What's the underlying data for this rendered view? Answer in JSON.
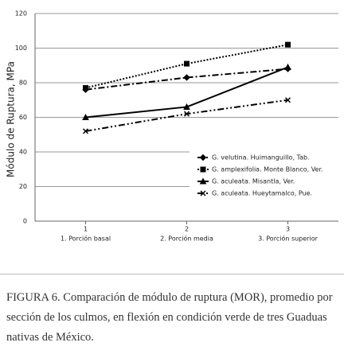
{
  "chart_data": {
    "type": "line",
    "y_label": "Módulo de Ruptura, MPa",
    "categories": [
      "1",
      "2",
      "3"
    ],
    "category_descriptions": [
      "1. Porción basal",
      "2. Porción media",
      "3. Porción superior"
    ],
    "ylim": [
      0,
      120
    ],
    "yticks": [
      0,
      20,
      40,
      60,
      80,
      100,
      120
    ],
    "grid": true,
    "series": [
      {
        "name": "G. velutina. Huimanguillo, Tab.",
        "color": "#000000",
        "dash": "dashdot",
        "marker": "diamond",
        "values": [
          76,
          83,
          88
        ]
      },
      {
        "name": "G. amplexifolia. Monte Blanco, Ver.",
        "color": "#000000",
        "dash": "dot",
        "marker": "square",
        "values": [
          77,
          91,
          102
        ]
      },
      {
        "name": "G. aculeata. Misantla, Ver.",
        "color": "#000000",
        "dash": "solid",
        "marker": "triangle",
        "values": [
          60,
          66,
          89
        ]
      },
      {
        "name": "G. aculeata. Hueytamalco, Pue.",
        "color": "#000000",
        "dash": "dashdotdot",
        "marker": "x",
        "values": [
          52,
          62,
          70
        ]
      }
    ]
  },
  "caption": "FIGURA 6. Comparación de módulo de ruptura (MOR), promedio por sección de los culmos, en flexión  en condición verde de tres Guaduas nativas de México."
}
